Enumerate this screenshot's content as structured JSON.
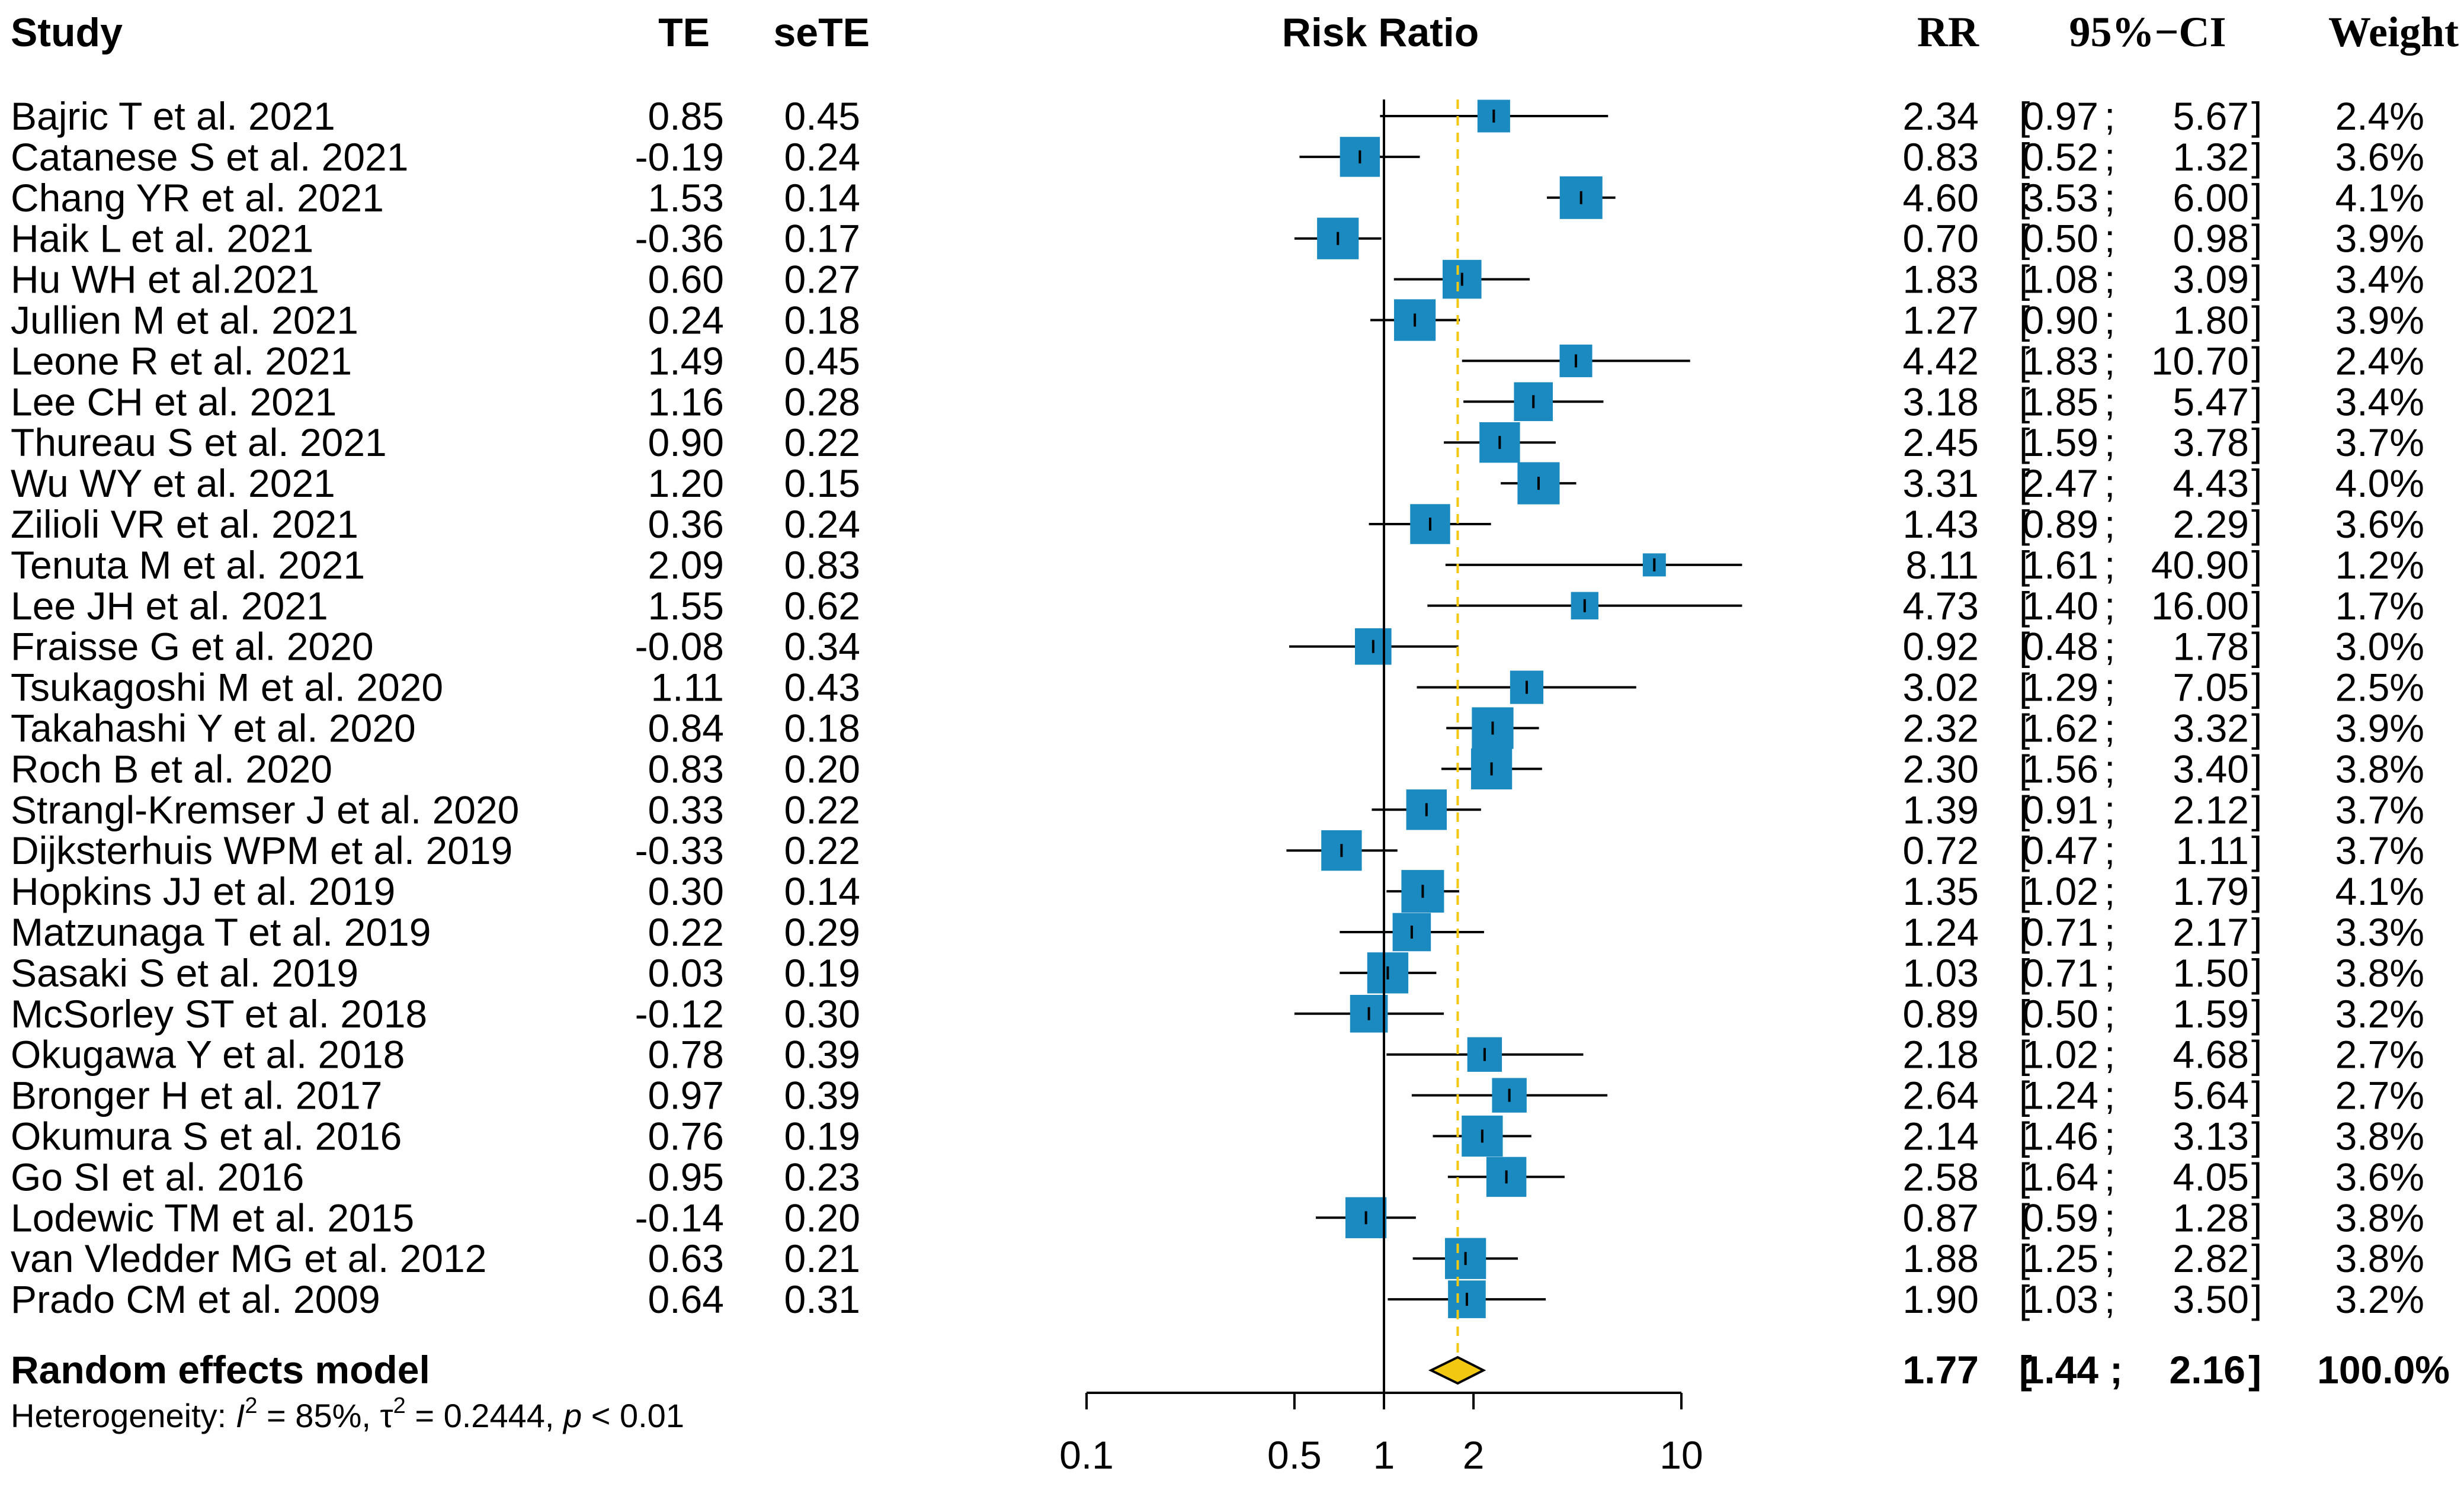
{
  "chart_data": {
    "type": "forest",
    "header": {
      "study": "Study",
      "te": "TE",
      "sete": "seTE",
      "plot_title": "Risk Ratio",
      "rr": "RR",
      "ci": "95%−CI",
      "weight": "Weight"
    },
    "studies": [
      {
        "name": "Bajric T et al. 2021",
        "te": "0.85",
        "sete": "0.45",
        "rr": 2.34,
        "lo": 0.97,
        "hi": 5.67,
        "rr_label": "2.34",
        "lo_label": "0.97",
        "hi_label": "5.67",
        "weight": "2.4%"
      },
      {
        "name": "Catanese S et al. 2021",
        "te": "-0.19",
        "sete": "0.24",
        "rr": 0.83,
        "lo": 0.52,
        "hi": 1.32,
        "rr_label": "0.83",
        "lo_label": "0.52",
        "hi_label": "1.32",
        "weight": "3.6%"
      },
      {
        "name": "Chang YR et al. 2021",
        "te": "1.53",
        "sete": "0.14",
        "rr": 4.6,
        "lo": 3.53,
        "hi": 6.0,
        "rr_label": "4.60",
        "lo_label": "3.53",
        "hi_label": "6.00",
        "weight": "4.1%"
      },
      {
        "name": "Haik L et al. 2021",
        "te": "-0.36",
        "sete": "0.17",
        "rr": 0.7,
        "lo": 0.5,
        "hi": 0.98,
        "rr_label": "0.70",
        "lo_label": "0.50",
        "hi_label": "0.98",
        "weight": "3.9%"
      },
      {
        "name": "Hu WH et al.2021",
        "te": "0.60",
        "sete": "0.27",
        "rr": 1.83,
        "lo": 1.08,
        "hi": 3.09,
        "rr_label": "1.83",
        "lo_label": "1.08",
        "hi_label": "3.09",
        "weight": "3.4%"
      },
      {
        "name": "Jullien M et al. 2021",
        "te": "0.24",
        "sete": "0.18",
        "rr": 1.27,
        "lo": 0.9,
        "hi": 1.8,
        "rr_label": "1.27",
        "lo_label": "0.90",
        "hi_label": "1.80",
        "weight": "3.9%"
      },
      {
        "name": "Leone R et al. 2021",
        "te": "1.49",
        "sete": "0.45",
        "rr": 4.42,
        "lo": 1.83,
        "hi": 10.7,
        "rr_label": "4.42",
        "lo_label": "1.83",
        "hi_label": "10.70",
        "weight": "2.4%"
      },
      {
        "name": "Lee CH et al. 2021",
        "te": "1.16",
        "sete": "0.28",
        "rr": 3.18,
        "lo": 1.85,
        "hi": 5.47,
        "rr_label": "3.18",
        "lo_label": "1.85",
        "hi_label": "5.47",
        "weight": "3.4%"
      },
      {
        "name": "Thureau S et al. 2021",
        "te": "0.90",
        "sete": "0.22",
        "rr": 2.45,
        "lo": 1.59,
        "hi": 3.78,
        "rr_label": "2.45",
        "lo_label": "1.59",
        "hi_label": "3.78",
        "weight": "3.7%"
      },
      {
        "name": "Wu WY et al. 2021",
        "te": "1.20",
        "sete": "0.15",
        "rr": 3.31,
        "lo": 2.47,
        "hi": 4.43,
        "rr_label": "3.31",
        "lo_label": "2.47",
        "hi_label": "4.43",
        "weight": "4.0%"
      },
      {
        "name": "Zilioli VR et al. 2021",
        "te": "0.36",
        "sete": "0.24",
        "rr": 1.43,
        "lo": 0.89,
        "hi": 2.29,
        "rr_label": "1.43",
        "lo_label": "0.89",
        "hi_label": "2.29",
        "weight": "3.6%"
      },
      {
        "name": "Tenuta M et al. 2021",
        "te": "2.09",
        "sete": "0.83",
        "rr": 8.11,
        "lo": 1.61,
        "hi": 40.9,
        "rr_label": "8.11",
        "lo_label": "1.61",
        "hi_label": "40.90",
        "weight": "1.2%"
      },
      {
        "name": "Lee JH et al. 2021",
        "te": "1.55",
        "sete": "0.62",
        "rr": 4.73,
        "lo": 1.4,
        "hi": 16.0,
        "rr_label": "4.73",
        "lo_label": "1.40",
        "hi_label": "16.00",
        "weight": "1.7%"
      },
      {
        "name": "Fraisse G et al. 2020",
        "te": "-0.08",
        "sete": "0.34",
        "rr": 0.92,
        "lo": 0.48,
        "hi": 1.78,
        "rr_label": "0.92",
        "lo_label": "0.48",
        "hi_label": "1.78",
        "weight": "3.0%"
      },
      {
        "name": "Tsukagoshi M et al. 2020",
        "te": "1.11",
        "sete": "0.43",
        "rr": 3.02,
        "lo": 1.29,
        "hi": 7.05,
        "rr_label": "3.02",
        "lo_label": "1.29",
        "hi_label": "7.05",
        "weight": "2.5%"
      },
      {
        "name": "Takahashi Y et al. 2020",
        "te": "0.84",
        "sete": "0.18",
        "rr": 2.32,
        "lo": 1.62,
        "hi": 3.32,
        "rr_label": "2.32",
        "lo_label": "1.62",
        "hi_label": "3.32",
        "weight": "3.9%"
      },
      {
        "name": "Roch B et al. 2020",
        "te": "0.83",
        "sete": "0.20",
        "rr": 2.3,
        "lo": 1.56,
        "hi": 3.4,
        "rr_label": "2.30",
        "lo_label": "1.56",
        "hi_label": "3.40",
        "weight": "3.8%"
      },
      {
        "name": "Strangl-Kremser J et al. 2020",
        "te": "0.33",
        "sete": "0.22",
        "rr": 1.39,
        "lo": 0.91,
        "hi": 2.12,
        "rr_label": "1.39",
        "lo_label": "0.91",
        "hi_label": "2.12",
        "weight": "3.7%"
      },
      {
        "name": "Dijksterhuis WPM et al. 2019",
        "te": "-0.33",
        "sete": "0.22",
        "rr": 0.72,
        "lo": 0.47,
        "hi": 1.11,
        "rr_label": "0.72",
        "lo_label": "0.47",
        "hi_label": "1.11",
        "weight": "3.7%"
      },
      {
        "name": "Hopkins JJ et al. 2019",
        "te": "0.30",
        "sete": "0.14",
        "rr": 1.35,
        "lo": 1.02,
        "hi": 1.79,
        "rr_label": "1.35",
        "lo_label": "1.02",
        "hi_label": "1.79",
        "weight": "4.1%"
      },
      {
        "name": "Matzunaga T et al. 2019",
        "te": "0.22",
        "sete": "0.29",
        "rr": 1.24,
        "lo": 0.71,
        "hi": 2.17,
        "rr_label": "1.24",
        "lo_label": "0.71",
        "hi_label": "2.17",
        "weight": "3.3%"
      },
      {
        "name": "Sasaki S et al. 2019",
        "te": "0.03",
        "sete": "0.19",
        "rr": 1.03,
        "lo": 0.71,
        "hi": 1.5,
        "rr_label": "1.03",
        "lo_label": "0.71",
        "hi_label": "1.50",
        "weight": "3.8%"
      },
      {
        "name": "McSorley ST et al. 2018",
        "te": "-0.12",
        "sete": "0.30",
        "rr": 0.89,
        "lo": 0.5,
        "hi": 1.59,
        "rr_label": "0.89",
        "lo_label": "0.50",
        "hi_label": "1.59",
        "weight": "3.2%"
      },
      {
        "name": "Okugawa Y et al. 2018",
        "te": "0.78",
        "sete": "0.39",
        "rr": 2.18,
        "lo": 1.02,
        "hi": 4.68,
        "rr_label": "2.18",
        "lo_label": "1.02",
        "hi_label": "4.68",
        "weight": "2.7%"
      },
      {
        "name": "Bronger H et al. 2017",
        "te": "0.97",
        "sete": "0.39",
        "rr": 2.64,
        "lo": 1.24,
        "hi": 5.64,
        "rr_label": "2.64",
        "lo_label": "1.24",
        "hi_label": "5.64",
        "weight": "2.7%"
      },
      {
        "name": "Okumura S et al. 2016",
        "te": "0.76",
        "sete": "0.19",
        "rr": 2.14,
        "lo": 1.46,
        "hi": 3.13,
        "rr_label": "2.14",
        "lo_label": "1.46",
        "hi_label": "3.13",
        "weight": "3.8%"
      },
      {
        "name": "Go SI et al. 2016",
        "te": "0.95",
        "sete": "0.23",
        "rr": 2.58,
        "lo": 1.64,
        "hi": 4.05,
        "rr_label": "2.58",
        "lo_label": "1.64",
        "hi_label": "4.05",
        "weight": "3.6%"
      },
      {
        "name": "Lodewic TM et al. 2015",
        "te": "-0.14",
        "sete": "0.20",
        "rr": 0.87,
        "lo": 0.59,
        "hi": 1.28,
        "rr_label": "0.87",
        "lo_label": "0.59",
        "hi_label": "1.28",
        "weight": "3.8%"
      },
      {
        "name": "van Vledder MG et al. 2012",
        "te": "0.63",
        "sete": "0.21",
        "rr": 1.88,
        "lo": 1.25,
        "hi": 2.82,
        "rr_label": "1.88",
        "lo_label": "1.25",
        "hi_label": "2.82",
        "weight": "3.8%"
      },
      {
        "name": "Prado CM et al. 2009",
        "te": "0.64",
        "sete": "0.31",
        "rr": 1.9,
        "lo": 1.03,
        "hi": 3.5,
        "rr_label": "1.90",
        "lo_label": "1.03",
        "hi_label": "3.50",
        "weight": "3.2%"
      }
    ],
    "summary": {
      "label": "Random effects model",
      "rr": 1.77,
      "lo": 1.44,
      "hi": 2.16,
      "rr_label": "1.77",
      "lo_label": "1.44",
      "hi_label": "2.16",
      "weight": "100.0%"
    },
    "heterogeneity": {
      "prefix": "Heterogeneity: ",
      "i2_sym": "I",
      "i2_sup": "2",
      "i2_val": " = 85%, ",
      "tau_sym": "τ",
      "tau_sup": "2",
      "tau_val": " = 0.2444, ",
      "p_sym": "p",
      "p_val": " < 0.01"
    },
    "x_axis": {
      "scale": "log",
      "range": [
        0.1,
        10
      ],
      "ticks": [
        0.1,
        0.5,
        1,
        2,
        10
      ],
      "tick_labels": [
        "0.1",
        "0.5",
        "1",
        "2",
        "10"
      ],
      "null_line": 1,
      "pooled_line": 1.77
    },
    "colors": {
      "square": "#1a8ac0",
      "diamond": "#f2c811",
      "pooled_line": "#f2c811",
      "ink": "#000000"
    }
  }
}
